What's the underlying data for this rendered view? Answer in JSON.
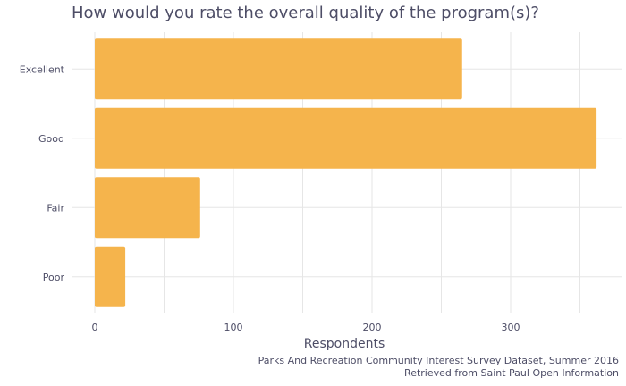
{
  "chart_data": {
    "type": "bar",
    "orientation": "horizontal",
    "title": "How would you rate the overall quality of the program(s)?",
    "xlabel": "Respondents",
    "ylabel": "",
    "categories": [
      "Excellent",
      "Good",
      "Fair",
      "Poor"
    ],
    "values": [
      265,
      362,
      76,
      22
    ],
    "xlim": [
      0,
      380
    ],
    "xticks": [
      0,
      100,
      200,
      300
    ],
    "grid": true,
    "bar_color": "#f5b44c",
    "caption": [
      "Parks And Recreation Community Interest Survey Dataset, Summer 2016",
      "Retrieved from Saint Paul Open Information"
    ]
  }
}
